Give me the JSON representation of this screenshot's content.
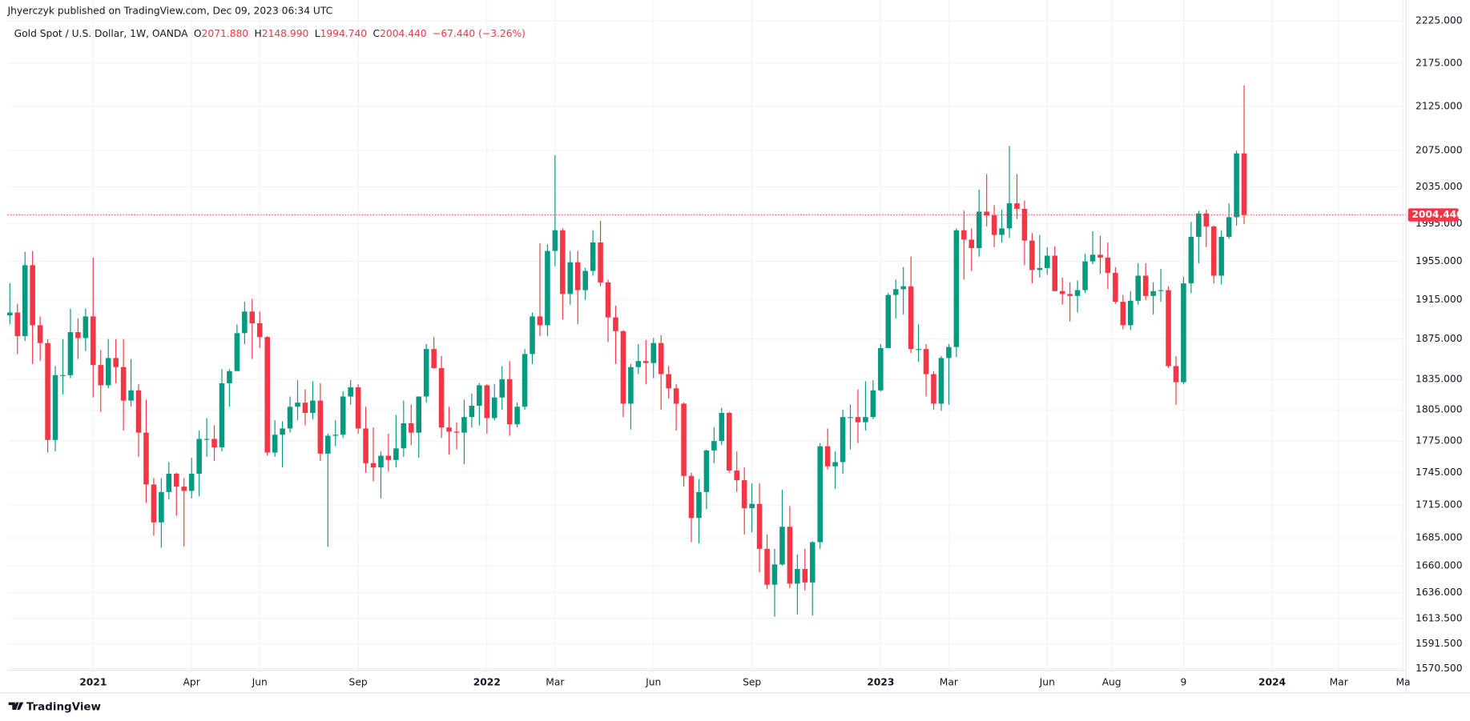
{
  "header": {
    "publisher": "Jhyerczyk published on TradingView.com, Dec 09, 2023 06:34 UTC",
    "symbol": "Gold Spot / U.S. Dollar, 1W, OANDA",
    "o_key": "O",
    "o": "2071.880",
    "h_key": "H",
    "h": "2148.990",
    "l_key": "L",
    "l": "1994.740",
    "c_key": "C",
    "c": "2004.440",
    "change": "−67.440",
    "change_pct": "(−3.26%)"
  },
  "footer": {
    "logo": "TradingView"
  },
  "chart_data": {
    "type": "candlestick",
    "log": true,
    "grid": true,
    "up_color": "#089981",
    "down_color": "#f23645",
    "open": [
      1899,
      1902,
      1878,
      1951,
      1889,
      1871,
      1776,
      1839,
      1839,
      1882,
      1876,
      1898,
      1849,
      1829,
      1856,
      1847,
      1814,
      1824,
      1783,
      1734,
      1699,
      1727,
      1744,
      1732,
      1728,
      1744,
      1777,
      1777,
      1769,
      1831,
      1843,
      1881,
      1903,
      1891,
      1877,
      1764,
      1781,
      1787,
      1808,
      1812,
      1802,
      1814,
      1763,
      1780,
      1781,
      1818,
      1827,
      1787,
      1754,
      1750,
      1761,
      1757,
      1768,
      1792,
      1783,
      1818,
      1865,
      1846,
      1788,
      1784,
      1783,
      1798,
      1809,
      1829,
      1797,
      1817,
      1835,
      1791,
      1808,
      1860,
      1898,
      1889,
      1966,
      1988,
      1921,
      1954,
      1925,
      1945,
      1975,
      1933,
      1897,
      1883,
      1811,
      1847,
      1853,
      1851,
      1871,
      1840,
      1826,
      1811,
      1742,
      1703,
      1727,
      1766,
      1775,
      1802,
      1747,
      1738,
      1712,
      1716,
      1675,
      1643,
      1661,
      1695,
      1644,
      1657,
      1645,
      1681,
      1770,
      1751,
      1755,
      1798,
      1798,
      1793,
      1798,
      1824,
      1866,
      1920,
      1926,
      1929,
      1865,
      1865,
      1840,
      1811,
      1856,
      1867,
      1988,
      1978,
      1969,
      2008,
      2004,
      1983,
      1990,
      2017,
      2011,
      1977,
      1946,
      1948,
      1961,
      1924,
      1921,
      1919,
      1925,
      1955,
      1962,
      1959,
      1943,
      1913,
      1889,
      1914,
      1940,
      1919,
      1924,
      1925,
      1848,
      1832,
      1932,
      1981,
      2006,
      1992,
      1940,
      1981,
      2002,
      2071.88
    ],
    "high": [
      1932,
      1911,
      1965,
      1966,
      1898,
      1875,
      1848,
      1875,
      1906,
      1896,
      1906,
      1959,
      1864,
      1875,
      1875,
      1875,
      1855,
      1830,
      1815,
      1740,
      1740,
      1755,
      1745,
      1740,
      1759,
      1785,
      1797,
      1790,
      1845,
      1845,
      1890,
      1913,
      1916,
      1903,
      1878,
      1795,
      1794,
      1818,
      1834,
      1825,
      1833,
      1831,
      1782,
      1795,
      1823,
      1834,
      1830,
      1808,
      1788,
      1765,
      1782,
      1800,
      1814,
      1810,
      1818,
      1870,
      1877,
      1858,
      1808,
      1793,
      1815,
      1821,
      1831,
      1830,
      1830,
      1848,
      1853,
      1812,
      1865,
      1902,
      1974,
      1973,
      2070,
      1990,
      1966,
      1966,
      1948,
      1988,
      1998,
      1936,
      1909,
      1884,
      1850,
      1870,
      1874,
      1876,
      1879,
      1848,
      1830,
      1812,
      1745,
      1739,
      1767,
      1788,
      1807,
      1803,
      1765,
      1750,
      1735,
      1735,
      1688,
      1675,
      1729,
      1714,
      1670,
      1675,
      1682,
      1773,
      1787,
      1765,
      1805,
      1810,
      1825,
      1833,
      1834,
      1870,
      1922,
      1936,
      1949,
      1960,
      1890,
      1870,
      1843,
      1858,
      1870,
      1990,
      2009,
      1990,
      2032,
      2049,
      2015,
      2010,
      2080,
      2049,
      2020,
      1985,
      1983,
      1970,
      1971,
      1938,
      1933,
      1935,
      1963,
      1987,
      1982,
      1975,
      1949,
      1920,
      1924,
      1953,
      1953,
      1933,
      1947,
      1929,
      1858,
      1939,
      1997,
      2009,
      2010,
      1993,
      1988,
      2017,
      2075,
      2148.99
    ],
    "low": [
      1890,
      1860,
      1873,
      1850,
      1853,
      1764,
      1765,
      1820,
      1836,
      1855,
      1863,
      1817,
      1803,
      1826,
      1831,
      1785,
      1808,
      1760,
      1717,
      1687,
      1676,
      1720,
      1705,
      1677,
      1721,
      1723,
      1760,
      1756,
      1765,
      1808,
      1843,
      1870,
      1855,
      1866,
      1761,
      1760,
      1750,
      1783,
      1795,
      1790,
      1796,
      1756,
      1677,
      1770,
      1778,
      1810,
      1782,
      1745,
      1737,
      1721,
      1746,
      1750,
      1760,
      1771,
      1759,
      1812,
      1845,
      1778,
      1762,
      1767,
      1753,
      1788,
      1790,
      1782,
      1795,
      1805,
      1780,
      1788,
      1805,
      1850,
      1878,
      1878,
      1950,
      1895,
      1910,
      1890,
      1915,
      1940,
      1929,
      1872,
      1850,
      1798,
      1786,
      1840,
      1830,
      1836,
      1805,
      1816,
      1785,
      1732,
      1681,
      1680,
      1711,
      1754,
      1771,
      1745,
      1727,
      1688,
      1690,
      1654,
      1639,
      1615,
      1660,
      1640,
      1617,
      1638,
      1616,
      1675,
      1748,
      1730,
      1744,
      1767,
      1773,
      1785,
      1796,
      1823,
      1866,
      1896,
      1900,
      1861,
      1852,
      1818,
      1805,
      1804,
      1810,
      1857,
      1936,
      1945,
      1960,
      1992,
      1970,
      1975,
      1980,
      2000,
      1951,
      1932,
      1938,
      1941,
      1924,
      1910,
      1893,
      1902,
      1922,
      1952,
      1942,
      1926,
      1911,
      1885,
      1884,
      1910,
      1915,
      1900,
      1913,
      1846,
      1810,
      1830,
      1922,
      1953,
      1970,
      1932,
      1931,
      1979,
      1993,
      1994.74
    ],
    "close": [
      1902,
      1878,
      1951,
      1889,
      1871,
      1776,
      1839,
      1839,
      1882,
      1876,
      1898,
      1849,
      1829,
      1856,
      1847,
      1814,
      1824,
      1783,
      1734,
      1699,
      1727,
      1744,
      1732,
      1728,
      1744,
      1777,
      1777,
      1769,
      1831,
      1843,
      1881,
      1903,
      1891,
      1877,
      1764,
      1781,
      1787,
      1808,
      1812,
      1802,
      1814,
      1763,
      1780,
      1781,
      1818,
      1827,
      1787,
      1754,
      1750,
      1761,
      1757,
      1768,
      1792,
      1783,
      1818,
      1865,
      1846,
      1788,
      1784,
      1783,
      1798,
      1809,
      1829,
      1797,
      1817,
      1835,
      1791,
      1808,
      1860,
      1898,
      1889,
      1966,
      1988,
      1921,
      1954,
      1925,
      1945,
      1975,
      1933,
      1897,
      1883,
      1811,
      1847,
      1853,
      1851,
      1871,
      1840,
      1826,
      1811,
      1742,
      1703,
      1727,
      1766,
      1775,
      1802,
      1747,
      1738,
      1712,
      1716,
      1675,
      1643,
      1661,
      1695,
      1644,
      1657,
      1645,
      1681,
      1770,
      1751,
      1755,
      1798,
      1798,
      1793,
      1798,
      1824,
      1866,
      1920,
      1926,
      1929,
      1865,
      1865,
      1840,
      1811,
      1856,
      1867,
      1988,
      1978,
      1969,
      2008,
      2004,
      1983,
      1990,
      2017,
      2011,
      1977,
      1946,
      1948,
      1961,
      1924,
      1921,
      1919,
      1925,
      1955,
      1962,
      1959,
      1943,
      1913,
      1889,
      1914,
      1940,
      1919,
      1924,
      1925,
      1848,
      1832,
      1932,
      1981,
      2006,
      1992,
      1940,
      1981,
      2002,
      2071.88,
      2004.44
    ],
    "last_price": {
      "value": 2004.44,
      "label": "2004.440",
      "color": "#f23645"
    },
    "xlim": [
      -0.3,
      184.4
    ],
    "xticks": [
      {
        "value": 11,
        "label": "2021"
      },
      {
        "value": 24,
        "label": "Apr"
      },
      {
        "value": 33,
        "label": "Jun"
      },
      {
        "value": 46,
        "label": "Sep"
      },
      {
        "value": 63,
        "label": "2022"
      },
      {
        "value": 72,
        "label": "Mar"
      },
      {
        "value": 85,
        "label": "Jun"
      },
      {
        "value": 98,
        "label": "Sep"
      },
      {
        "value": 115,
        "label": "2023"
      },
      {
        "value": 124,
        "label": "Mar"
      },
      {
        "value": 137,
        "label": "Jun"
      },
      {
        "value": 145.5,
        "label": "Aug"
      },
      {
        "value": 155,
        "label": "9"
      },
      {
        "value": 166.7,
        "label": "2024"
      },
      {
        "value": 175.5,
        "label": "Mar"
      },
      {
        "value": 184,
        "label": "Ma"
      }
    ],
    "ylim": [
      1569,
      2250
    ],
    "yticks": [
      {
        "value": 2225,
        "label": "2225.000"
      },
      {
        "value": 2175,
        "label": "2175.000"
      },
      {
        "value": 2125,
        "label": "2125.000"
      },
      {
        "value": 2075,
        "label": "2075.000"
      },
      {
        "value": 2035,
        "label": "2035.000"
      },
      {
        "value": 1995,
        "label": "1995.000"
      },
      {
        "value": 1955,
        "label": "1955.000"
      },
      {
        "value": 1915,
        "label": "1915.000"
      },
      {
        "value": 1875,
        "label": "1875.000"
      },
      {
        "value": 1835,
        "label": "1835.000"
      },
      {
        "value": 1805,
        "label": "1805.000"
      },
      {
        "value": 1775,
        "label": "1775.000"
      },
      {
        "value": 1745,
        "label": "1745.000"
      },
      {
        "value": 1715,
        "label": "1715.000"
      },
      {
        "value": 1685,
        "label": "1685.000"
      },
      {
        "value": 1660,
        "label": "1660.000"
      },
      {
        "value": 1636,
        "label": "1636.000"
      },
      {
        "value": 1613.5,
        "label": "1613.500"
      },
      {
        "value": 1591.5,
        "label": "1591.500"
      },
      {
        "value": 1570.5,
        "label": "1570.500"
      }
    ]
  }
}
